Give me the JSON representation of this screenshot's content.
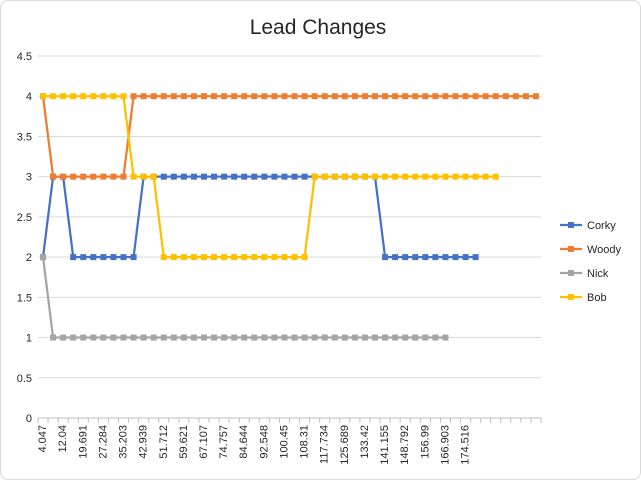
{
  "chart_data": {
    "type": "line",
    "title": "Lead Changes",
    "xlabel": "",
    "ylabel": "",
    "ylim": [
      0,
      4.5
    ],
    "yticks": [
      "0",
      "0.5",
      "1",
      "1.5",
      "2",
      "2.5",
      "3",
      "3.5",
      "4",
      "4.5"
    ],
    "grid": true,
    "legend_position": "right",
    "x_tick_labels": [
      "4.047",
      "12.04",
      "19.691",
      "27.284",
      "35.203",
      "42.939",
      "51.712",
      "59.621",
      "67.107",
      "74.757",
      "84.644",
      "92.548",
      "100.45",
      "108.31",
      "117.734",
      "125.689",
      "133.42",
      "141.155",
      "148.792",
      "156.99",
      "166.903",
      "174.516"
    ],
    "series": [
      {
        "name": "Corky",
        "color": "#4472C4",
        "values": [
          2,
          3,
          3,
          2,
          2,
          2,
          2,
          2,
          2,
          2,
          3,
          3,
          3,
          3,
          3,
          3,
          3,
          3,
          3,
          3,
          3,
          3,
          3,
          3,
          3,
          3,
          3,
          3,
          3,
          3,
          3,
          3,
          3,
          3,
          2,
          2,
          2,
          2,
          2,
          2,
          2,
          2,
          2,
          2
        ]
      },
      {
        "name": "Woody",
        "color": "#ED7D31",
        "values": [
          4,
          3,
          3,
          3,
          3,
          3,
          3,
          3,
          3,
          4,
          4,
          4,
          4,
          4,
          4,
          4,
          4,
          4,
          4,
          4,
          4,
          4,
          4,
          4,
          4,
          4,
          4,
          4,
          4,
          4,
          4,
          4,
          4,
          4,
          4,
          4,
          4,
          4,
          4,
          4,
          4,
          4,
          4,
          4,
          4,
          4,
          4,
          4,
          4,
          4
        ]
      },
      {
        "name": "Nick",
        "color": "#A5A5A5",
        "values": [
          2,
          1,
          1,
          1,
          1,
          1,
          1,
          1,
          1,
          1,
          1,
          1,
          1,
          1,
          1,
          1,
          1,
          1,
          1,
          1,
          1,
          1,
          1,
          1,
          1,
          1,
          1,
          1,
          1,
          1,
          1,
          1,
          1,
          1,
          1,
          1,
          1,
          1,
          1,
          1,
          1
        ]
      },
      {
        "name": "Bob",
        "color": "#FFC000",
        "values": [
          4,
          4,
          4,
          4,
          4,
          4,
          4,
          4,
          4,
          3,
          3,
          3,
          2,
          2,
          2,
          2,
          2,
          2,
          2,
          2,
          2,
          2,
          2,
          2,
          2,
          2,
          2,
          3,
          3,
          3,
          3,
          3,
          3,
          3,
          3,
          3,
          3,
          3,
          3,
          3,
          3,
          3,
          3,
          3,
          3,
          3
        ]
      }
    ]
  }
}
